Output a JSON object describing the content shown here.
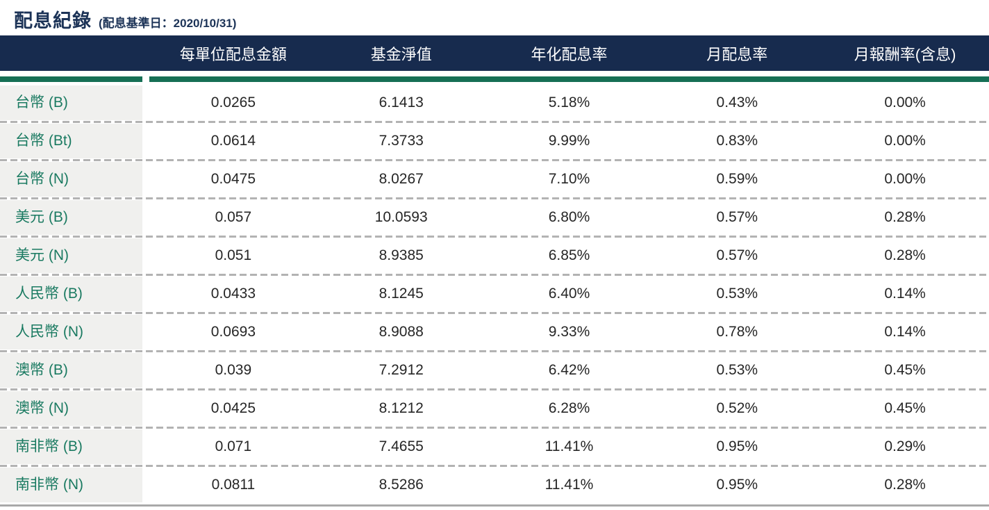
{
  "header": {
    "title": "配息紀錄",
    "subtitle": "(配息基準日：2020/10/31)"
  },
  "colors": {
    "header_bg": "#172b4e",
    "accent_green": "#166f55",
    "label_text": "#1a7a61",
    "label_bg": "#f0f0ee",
    "divider": "#b3b3b3",
    "title_text": "#1c3357",
    "value_text": "#262626",
    "bottom_line": "#a9a9a9"
  },
  "chart_data": {
    "type": "table",
    "title": "配息紀錄",
    "subtitle": "(配息基準日：2020/10/31)",
    "record_date": "2020/10/31",
    "columns": [
      "每單位配息金額",
      "基金淨值",
      "年化配息率",
      "月配息率",
      "月報酬率(含息)"
    ],
    "rows": [
      {
        "label": "台幣 (B)",
        "values": [
          "0.0265",
          "6.1413",
          "5.18%",
          "0.43%",
          "0.00%"
        ]
      },
      {
        "label": "台幣 (Bt)",
        "values": [
          "0.0614",
          "7.3733",
          "9.99%",
          "0.83%",
          "0.00%"
        ]
      },
      {
        "label": "台幣 (N)",
        "values": [
          "0.0475",
          "8.0267",
          "7.10%",
          "0.59%",
          "0.00%"
        ]
      },
      {
        "label": "美元 (B)",
        "values": [
          "0.057",
          "10.0593",
          "6.80%",
          "0.57%",
          "0.28%"
        ]
      },
      {
        "label": "美元 (N)",
        "values": [
          "0.051",
          "8.9385",
          "6.85%",
          "0.57%",
          "0.28%"
        ]
      },
      {
        "label": "人民幣 (B)",
        "values": [
          "0.0433",
          "8.1245",
          "6.40%",
          "0.53%",
          "0.14%"
        ]
      },
      {
        "label": "人民幣 (N)",
        "values": [
          "0.0693",
          "8.9088",
          "9.33%",
          "0.78%",
          "0.14%"
        ]
      },
      {
        "label": "澳幣 (B)",
        "values": [
          "0.039",
          "7.2912",
          "6.42%",
          "0.53%",
          "0.45%"
        ]
      },
      {
        "label": "澳幣 (N)",
        "values": [
          "0.0425",
          "8.1212",
          "6.28%",
          "0.52%",
          "0.45%"
        ]
      },
      {
        "label": "南非幣 (B)",
        "values": [
          "0.071",
          "7.4655",
          "11.41%",
          "0.95%",
          "0.29%"
        ]
      },
      {
        "label": "南非幣 (N)",
        "values": [
          "0.0811",
          "8.5286",
          "11.41%",
          "0.95%",
          "0.28%"
        ]
      }
    ]
  }
}
